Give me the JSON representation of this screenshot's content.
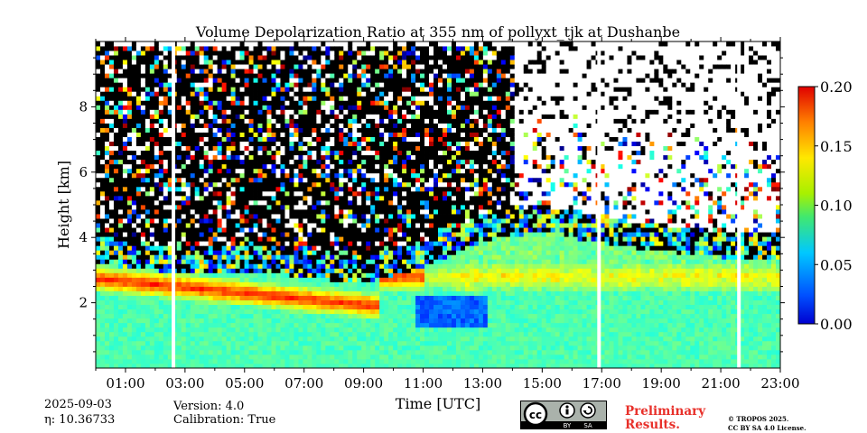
{
  "chart_data": {
    "type": "heatmap",
    "title": "Volume Depolarization Ratio at 355 nm of pollyxt_tjk at Dushanbe",
    "xlabel": "Time [UTC]",
    "ylabel": "Height [km]",
    "xlim": [
      0.0,
      23.0
    ],
    "ylim": [
      0.0,
      10.0
    ],
    "x_ticks": [
      1,
      3,
      5,
      7,
      9,
      11,
      13,
      15,
      17,
      19,
      21,
      23
    ],
    "x_tick_labels": [
      "01:00",
      "03:00",
      "05:00",
      "07:00",
      "09:00",
      "11:00",
      "13:00",
      "15:00",
      "17:00",
      "19:00",
      "21:00",
      "23:00"
    ],
    "y_ticks": [
      2,
      4,
      6,
      8
    ],
    "y_tick_labels": [
      "2",
      "4",
      "6",
      "8"
    ],
    "colorbar": {
      "vmin": 0.0,
      "vmax": 0.2,
      "ticks": [
        0.0,
        0.05,
        0.1,
        0.15,
        0.2
      ],
      "tick_labels": [
        "0.00",
        "0.05",
        "0.10",
        "0.15",
        "0.20"
      ],
      "colormap": "jet"
    },
    "data_gaps_hours": [
      [
        2.55,
        2.65
      ],
      [
        16.85,
        16.95
      ],
      [
        21.55,
        21.65
      ]
    ],
    "boundary_layer_top_km": [
      {
        "t": 0,
        "h": 3.6
      },
      {
        "t": 3,
        "h": 3.3
      },
      {
        "t": 6,
        "h": 3.3
      },
      {
        "t": 9,
        "h": 3.0
      },
      {
        "t": 11,
        "h": 3.5
      },
      {
        "t": 13,
        "h": 4.3
      },
      {
        "t": 15,
        "h": 4.6
      },
      {
        "t": 17,
        "h": 4.2
      },
      {
        "t": 19,
        "h": 4.0
      },
      {
        "t": 21,
        "h": 3.8
      },
      {
        "t": 23,
        "h": 3.7
      }
    ],
    "elevated_layer_peak_value": 0.17,
    "surface_layer_value": 0.09
  },
  "footer": {
    "date": "2025-09-03",
    "eta": "η: 10.36733",
    "version": "Version: 4.0",
    "calibration": "Calibration: True",
    "preliminary_line1": "Preliminary",
    "preliminary_line2": "Results.",
    "license_line1": "© TROPOS 2025.",
    "license_line2": "CC BY SA 4.0 License.",
    "preliminary_color": "#e8302a"
  },
  "cc_badge": {
    "cc": "cc",
    "by": "BY",
    "sa": "SA"
  }
}
